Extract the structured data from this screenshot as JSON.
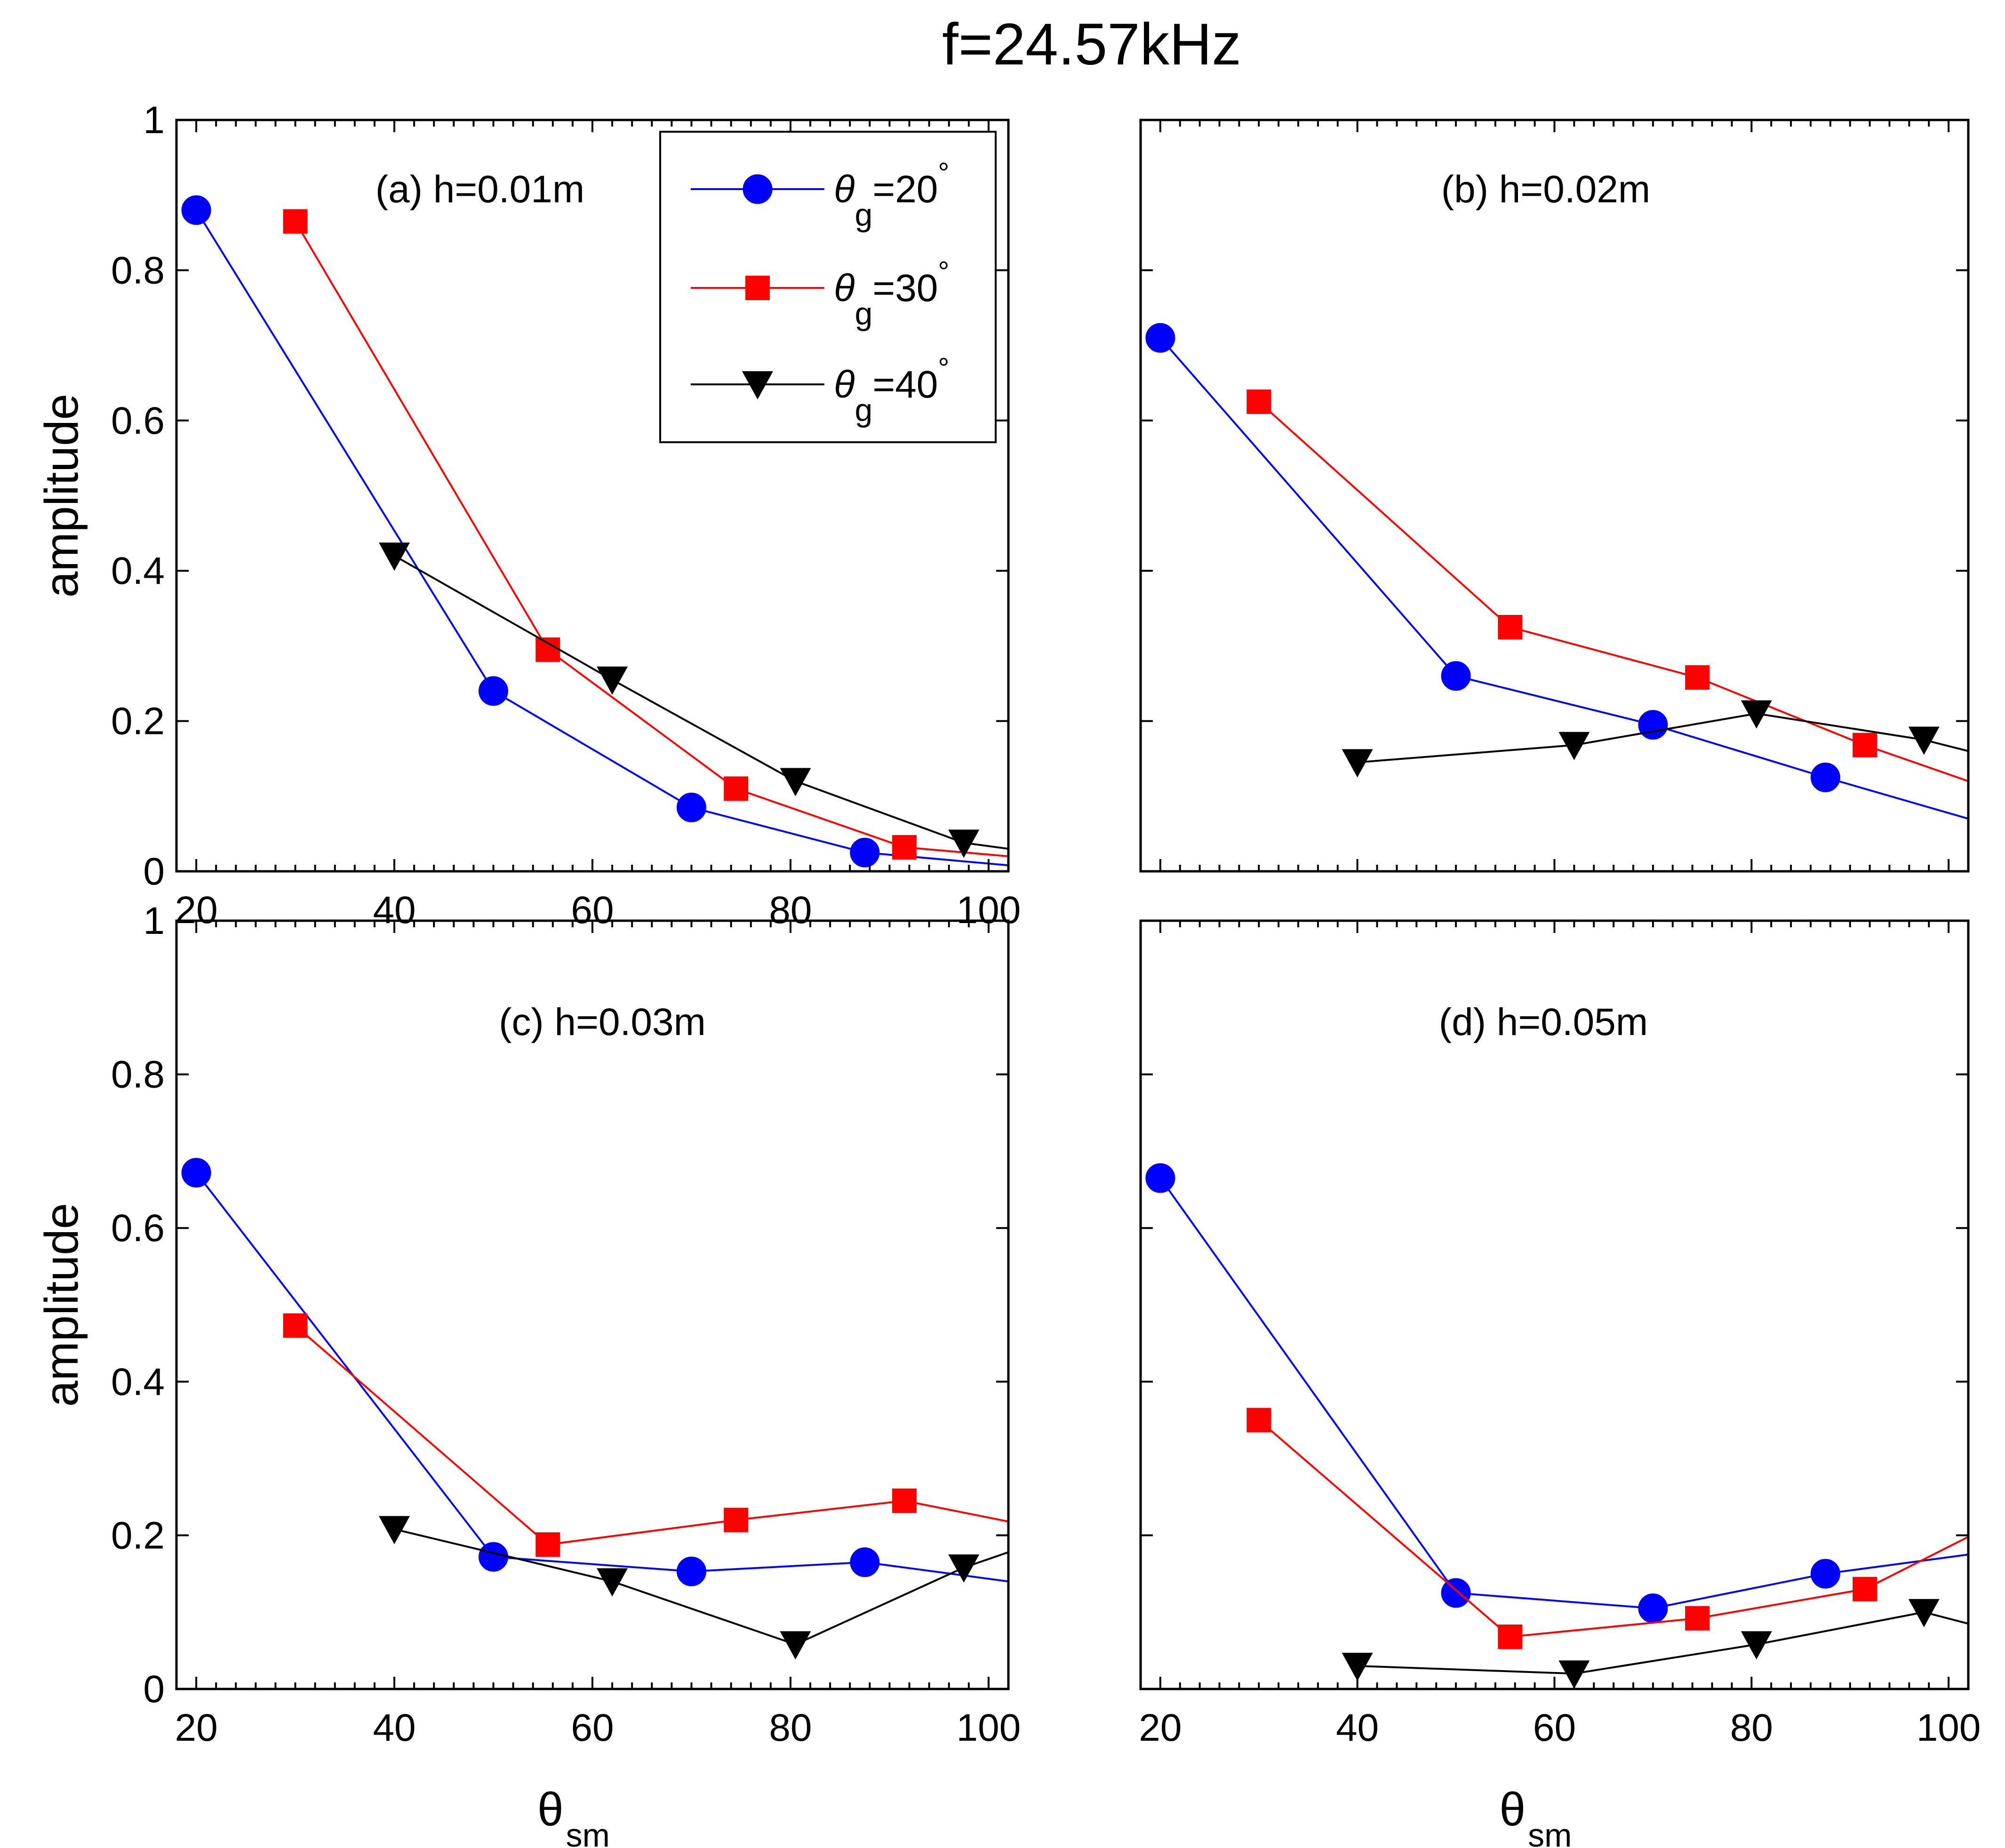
{
  "figure_title": "f=24.57kHz",
  "legend_theta_symbol": "θ",
  "legend_subscript": "g",
  "legend_degree": "°",
  "xlabel_symbol": "θ",
  "xlabel_subscript": "sm",
  "chart_data": [
    {
      "type": "line",
      "title": "(a) h=0.01m",
      "ylabel": "amplitude",
      "xlim": [
        18,
        102
      ],
      "ylim": [
        0,
        1
      ],
      "xticks": [
        20,
        40,
        60,
        80,
        100
      ],
      "yticks": [
        0,
        0.2,
        0.4,
        0.6,
        0.8,
        1
      ],
      "xticklabels": [
        "20",
        "40",
        "60",
        "80",
        "100"
      ],
      "yticklabels": [
        "0",
        "0.2",
        "0.4",
        "0.6",
        "0.8",
        "1"
      ],
      "series": [
        {
          "name": "θg=20°",
          "label_value": "=20",
          "color": "#0000ff",
          "marker": "circle",
          "x": [
            20,
            50,
            70,
            87.5
          ],
          "y": [
            0.88,
            0.24,
            0.085,
            0.025
          ],
          "line_end": [
            102,
            0.008
          ]
        },
        {
          "name": "θg=30°",
          "label_value": "=30",
          "color": "#ff0000",
          "marker": "square",
          "x": [
            30,
            55.5,
            74.5,
            91.5
          ],
          "y": [
            0.865,
            0.295,
            0.11,
            0.032
          ],
          "line_end": [
            102,
            0.02
          ]
        },
        {
          "name": "θg=40°",
          "label_value": "=40",
          "color": "#000000",
          "marker": "triangle-down",
          "x": [
            40,
            62,
            80.5,
            97.5
          ],
          "y": [
            0.42,
            0.255,
            0.12,
            0.038
          ],
          "line_end": [
            102,
            0.03
          ]
        }
      ]
    },
    {
      "type": "line",
      "title": "(b) h=0.02m",
      "ylabel": "",
      "xlim": [
        18,
        102
      ],
      "ylim": [
        0,
        1
      ],
      "xticks": [
        20,
        40,
        60,
        80,
        100
      ],
      "yticks": [
        0,
        0.2,
        0.4,
        0.6,
        0.8,
        1
      ],
      "xticklabels": [],
      "yticklabels": [],
      "series": [
        {
          "name": "θg=20°",
          "color": "#0000ff",
          "marker": "circle",
          "x": [
            20,
            50,
            70,
            87.5
          ],
          "y": [
            0.71,
            0.26,
            0.195,
            0.125
          ],
          "line_end": [
            102,
            0.07
          ]
        },
        {
          "name": "θg=30°",
          "color": "#ff0000",
          "marker": "square",
          "x": [
            30,
            55.5,
            74.5,
            91.5
          ],
          "y": [
            0.625,
            0.325,
            0.258,
            0.168
          ],
          "line_end": [
            102,
            0.12
          ]
        },
        {
          "name": "θg=40°",
          "color": "#000000",
          "marker": "triangle-down",
          "x": [
            40,
            62,
            80.5,
            97.5
          ],
          "y": [
            0.145,
            0.168,
            0.21,
            0.175
          ],
          "line_end": [
            102,
            0.16
          ]
        }
      ]
    },
    {
      "type": "line",
      "title": "(c) h=0.03m",
      "ylabel": "amplitude",
      "xlim": [
        18,
        102
      ],
      "ylim": [
        0,
        1
      ],
      "xticks": [
        20,
        40,
        60,
        80,
        100
      ],
      "yticks": [
        0,
        0.2,
        0.4,
        0.6,
        0.8,
        1
      ],
      "xticklabels": [
        "20",
        "40",
        "60",
        "80",
        "100"
      ],
      "yticklabels": [
        "0",
        "0.2",
        "0.4",
        "0.6",
        "0.8",
        "1"
      ],
      "series": [
        {
          "name": "θg=20°",
          "color": "#0000ff",
          "marker": "circle",
          "x": [
            20,
            50,
            70,
            87.5
          ],
          "y": [
            0.672,
            0.172,
            0.153,
            0.165
          ],
          "line_end": [
            102,
            0.14
          ]
        },
        {
          "name": "θg=30°",
          "color": "#ff0000",
          "marker": "square",
          "x": [
            30,
            55.5,
            74.5,
            91.5
          ],
          "y": [
            0.473,
            0.188,
            0.22,
            0.245
          ],
          "line_end": [
            102,
            0.218
          ]
        },
        {
          "name": "θg=40°",
          "color": "#000000",
          "marker": "triangle-down",
          "x": [
            40,
            62,
            80.5,
            97.5
          ],
          "y": [
            0.208,
            0.14,
            0.058,
            0.158
          ],
          "line_end": [
            102,
            0.178
          ]
        }
      ]
    },
    {
      "type": "line",
      "title": "(d) h=0.05m",
      "ylabel": "",
      "xlim": [
        18,
        102
      ],
      "ylim": [
        0,
        1
      ],
      "xticks": [
        20,
        40,
        60,
        80,
        100
      ],
      "yticks": [
        0,
        0.2,
        0.4,
        0.6,
        0.8,
        1
      ],
      "xticklabels": [
        "20",
        "40",
        "60",
        "80",
        "100"
      ],
      "yticklabels": [],
      "series": [
        {
          "name": "θg=20°",
          "color": "#0000ff",
          "marker": "circle",
          "x": [
            20,
            50,
            70,
            87.5
          ],
          "y": [
            0.665,
            0.125,
            0.105,
            0.15
          ],
          "line_end": [
            102,
            0.175
          ]
        },
        {
          "name": "θg=30°",
          "color": "#ff0000",
          "marker": "square",
          "x": [
            30,
            55.5,
            74.5,
            91.5
          ],
          "y": [
            0.35,
            0.068,
            0.092,
            0.13
          ],
          "line_end": [
            102,
            0.198
          ]
        },
        {
          "name": "θg=40°",
          "color": "#000000",
          "marker": "triangle-down",
          "x": [
            40,
            62,
            80.5,
            97.5
          ],
          "y": [
            0.03,
            0.02,
            0.058,
            0.1
          ],
          "line_end": [
            102,
            0.085
          ]
        }
      ]
    }
  ]
}
